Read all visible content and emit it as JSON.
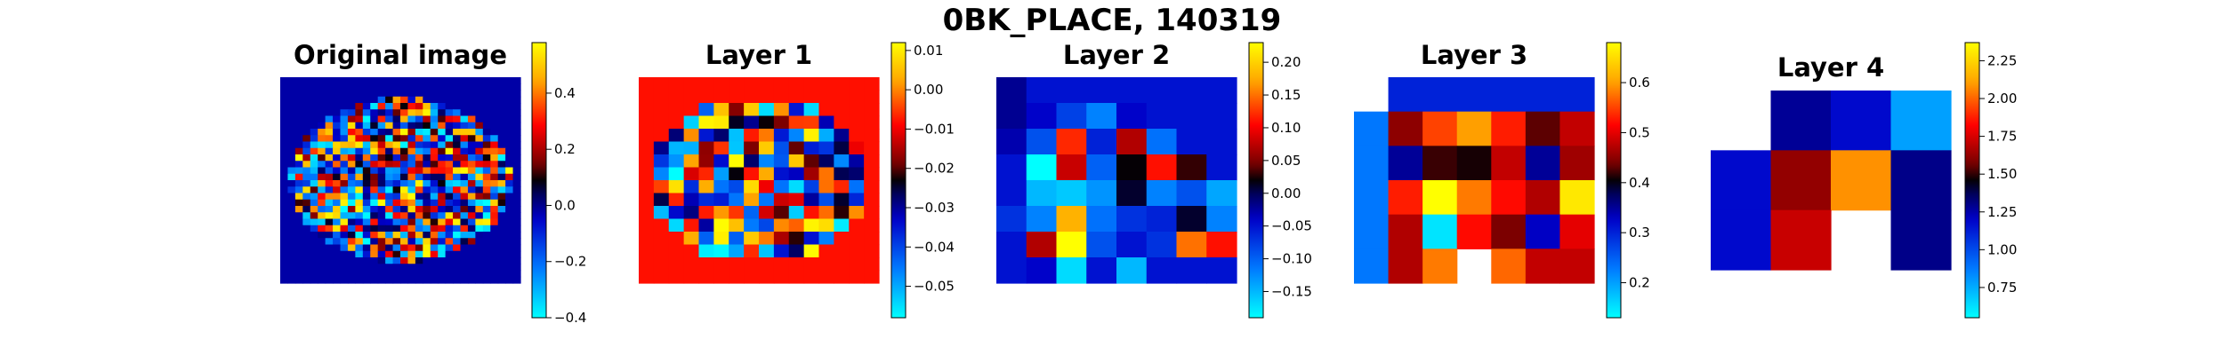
{
  "figure": {
    "title": "0BK_PLACE, 140319"
  },
  "chart_data": [
    {
      "type": "heatmap",
      "title": "Original image",
      "colormap": "cyan-blue-black-red-yellow",
      "colorbar": {
        "min": -0.4,
        "max": 0.58,
        "ticks": [
          "0.4",
          "0.2",
          "0.0",
          "−0.2",
          "−0.4"
        ],
        "tick_values": [
          0.4,
          0.2,
          0.0,
          -0.2,
          -0.4
        ]
      },
      "grid": {
        "rows": 32,
        "cols": 32
      },
      "background_value": -0.02,
      "mask": "ellipse",
      "seed": 3
    },
    {
      "type": "heatmap",
      "title": "Layer 1",
      "colormap": "cyan-blue-black-red-yellow",
      "colorbar": {
        "min": -0.058,
        "max": 0.012,
        "ticks": [
          "0.01",
          "0.00",
          "−0.01",
          "−0.02",
          "−0.03",
          "−0.04",
          "−0.05"
        ],
        "tick_values": [
          0.01,
          0.0,
          -0.01,
          -0.02,
          -0.03,
          -0.04,
          -0.05
        ]
      },
      "grid": {
        "rows": 16,
        "cols": 16
      },
      "background_value": -0.008,
      "mask": "ellipse",
      "seed": 7
    },
    {
      "type": "heatmap",
      "title": "Layer 2",
      "colormap": "cyan-blue-black-red-yellow",
      "colorbar": {
        "min": -0.19,
        "max": 0.23,
        "ticks": [
          "0.20",
          "0.15",
          "0.10",
          "0.05",
          "0.00",
          "−0.05",
          "−0.10",
          "−0.15"
        ],
        "tick_values": [
          0.2,
          0.15,
          0.1,
          0.05,
          0.0,
          -0.05,
          -0.1,
          -0.15
        ]
      },
      "grid": {
        "rows": 8,
        "cols": 8
      },
      "cells": [
        [
          -0.02,
          -0.05,
          -0.05,
          -0.05,
          -0.05,
          -0.05,
          -0.05,
          -0.05
        ],
        [
          -0.02,
          -0.04,
          -0.08,
          -0.12,
          -0.04,
          -0.05,
          -0.05,
          -0.05
        ],
        [
          -0.03,
          -0.09,
          0.12,
          -0.06,
          0.07,
          -0.11,
          -0.05,
          -0.05
        ],
        [
          -0.05,
          -0.19,
          0.08,
          -0.1,
          0.02,
          0.11,
          0.03,
          -0.05
        ],
        [
          -0.05,
          -0.15,
          -0.16,
          -0.13,
          0.01,
          -0.12,
          -0.09,
          -0.14
        ],
        [
          -0.07,
          -0.12,
          0.18,
          -0.11,
          -0.07,
          -0.06,
          0.01,
          -0.12
        ],
        [
          -0.05,
          0.07,
          0.23,
          -0.09,
          -0.05,
          -0.07,
          0.15,
          0.11
        ],
        [
          -0.05,
          -0.04,
          -0.17,
          -0.05,
          -0.15,
          -0.05,
          -0.05,
          -0.05
        ]
      ]
    },
    {
      "type": "heatmap",
      "title": "Layer 3",
      "colormap": "cyan-blue-black-red-yellow",
      "colorbar": {
        "min": 0.13,
        "max": 0.68,
        "ticks": [
          "0.6",
          "0.5",
          "0.4",
          "0.3",
          "0.2"
        ],
        "tick_values": [
          0.6,
          0.5,
          0.4,
          0.3,
          0.2
        ]
      },
      "grid": {
        "rows": 6,
        "cols": 7
      },
      "cells": [
        [
          null,
          0.3,
          0.3,
          0.3,
          0.3,
          0.3,
          0.3
        ],
        [
          0.23,
          0.45,
          0.55,
          0.6,
          0.53,
          0.43,
          0.48
        ],
        [
          0.23,
          0.35,
          0.42,
          0.41,
          0.48,
          0.35,
          0.46
        ],
        [
          0.23,
          0.53,
          0.68,
          0.58,
          0.52,
          0.47,
          0.66
        ],
        [
          0.23,
          0.47,
          0.15,
          0.52,
          0.44,
          0.33,
          0.5
        ],
        [
          0.23,
          0.47,
          0.58,
          null,
          0.57,
          0.48,
          0.48
        ]
      ]
    },
    {
      "type": "heatmap",
      "title": "Layer 4",
      "colormap": "cyan-blue-black-red-yellow",
      "colorbar": {
        "min": 0.55,
        "max": 2.37,
        "ticks": [
          "2.25",
          "2.00",
          "1.75",
          "1.50",
          "1.25",
          "1.00",
          "0.75"
        ],
        "tick_values": [
          2.25,
          2.0,
          1.75,
          1.5,
          1.25,
          1.0,
          0.75
        ]
      },
      "grid": {
        "rows": 3,
        "cols": 4
      },
      "cells": [
        [
          null,
          1.28,
          1.18,
          0.78
        ],
        [
          1.18,
          1.62,
          2.08,
          1.3
        ],
        [
          1.18,
          1.72,
          null,
          1.3
        ]
      ]
    }
  ]
}
